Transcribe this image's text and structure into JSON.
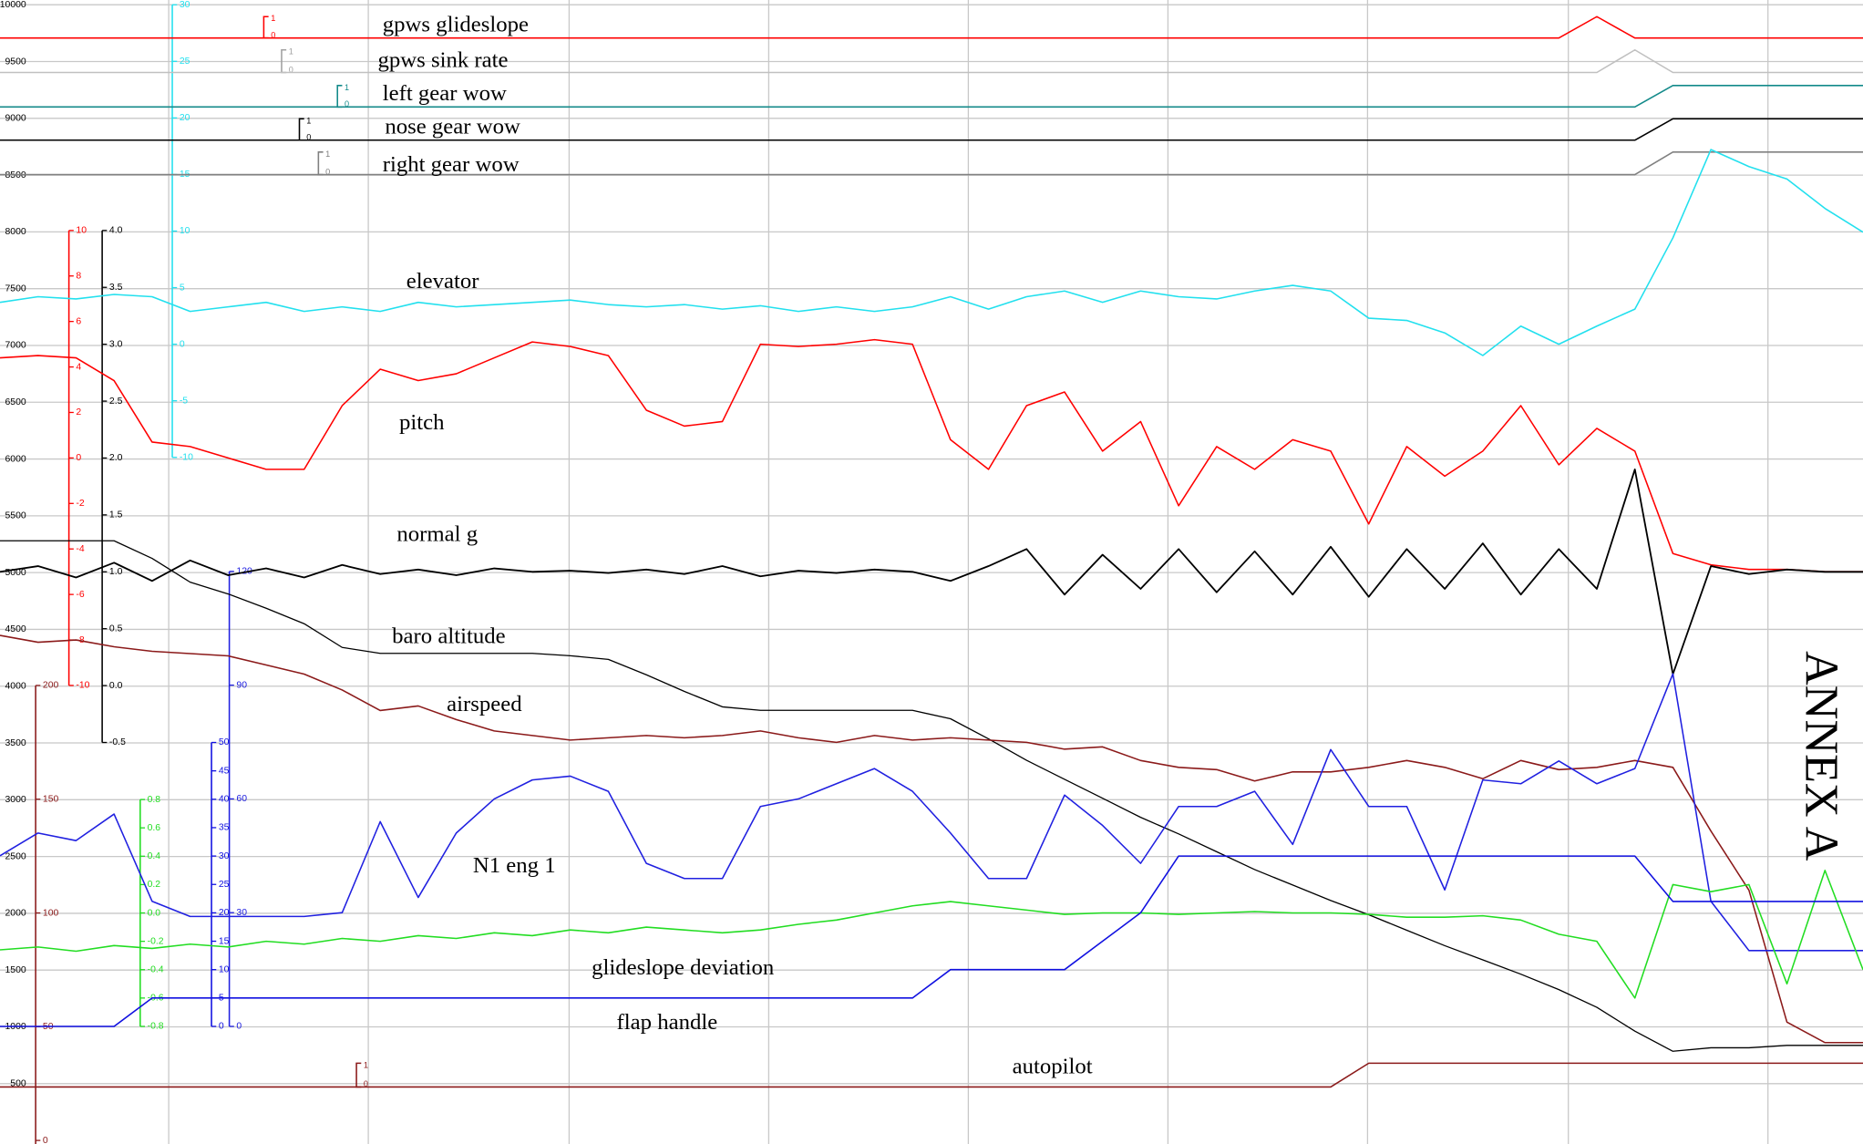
{
  "chart_data": {
    "type": "line",
    "grid": true,
    "annotation": "ANNEX A",
    "series": [
      {
        "name": "gpws glideslope",
        "color": "#ff0000",
        "ylim": [
          0,
          1
        ],
        "yticks": [
          0,
          1
        ],
        "values": [
          0,
          0,
          0,
          0,
          0,
          0,
          0,
          0,
          0,
          0,
          0,
          0,
          0,
          0,
          0,
          0,
          0,
          0,
          0,
          0,
          0,
          0,
          0,
          0,
          0,
          0,
          0,
          0,
          0,
          0,
          0,
          0,
          0,
          0,
          0,
          0,
          0,
          0,
          0,
          0,
          0,
          0,
          1,
          0,
          0,
          0,
          0,
          0,
          0,
          0
        ]
      },
      {
        "name": "gpws sink rate",
        "color": "#c0c0c0",
        "ylim": [
          0,
          1
        ],
        "yticks": [
          0,
          1
        ],
        "values": [
          0,
          0,
          0,
          0,
          0,
          0,
          0,
          0,
          0,
          0,
          0,
          0,
          0,
          0,
          0,
          0,
          0,
          0,
          0,
          0,
          0,
          0,
          0,
          0,
          0,
          0,
          0,
          0,
          0,
          0,
          0,
          0,
          0,
          0,
          0,
          0,
          0,
          0,
          0,
          0,
          0,
          0,
          0,
          1,
          0,
          0,
          0,
          0,
          0,
          0
        ]
      },
      {
        "name": "left gear wow",
        "color": "#138a8a",
        "ylim": [
          0,
          1
        ],
        "yticks": [
          0,
          1
        ],
        "values": [
          0,
          0,
          0,
          0,
          0,
          0,
          0,
          0,
          0,
          0,
          0,
          0,
          0,
          0,
          0,
          0,
          0,
          0,
          0,
          0,
          0,
          0,
          0,
          0,
          0,
          0,
          0,
          0,
          0,
          0,
          0,
          0,
          0,
          0,
          0,
          0,
          0,
          0,
          0,
          0,
          0,
          0,
          0,
          0,
          1,
          1,
          1,
          1,
          1,
          1
        ]
      },
      {
        "name": "nose gear wow",
        "color": "#000000",
        "ylim": [
          0,
          1
        ],
        "yticks": [
          0,
          1
        ],
        "values": [
          0,
          0,
          0,
          0,
          0,
          0,
          0,
          0,
          0,
          0,
          0,
          0,
          0,
          0,
          0,
          0,
          0,
          0,
          0,
          0,
          0,
          0,
          0,
          0,
          0,
          0,
          0,
          0,
          0,
          0,
          0,
          0,
          0,
          0,
          0,
          0,
          0,
          0,
          0,
          0,
          0,
          0,
          0,
          0,
          1,
          1,
          1,
          1,
          1,
          1
        ]
      },
      {
        "name": "right gear wow",
        "color": "#808080",
        "ylim": [
          0,
          1
        ],
        "yticks": [
          0,
          1
        ],
        "values": [
          0,
          0,
          0,
          0,
          0,
          0,
          0,
          0,
          0,
          0,
          0,
          0,
          0,
          0,
          0,
          0,
          0,
          0,
          0,
          0,
          0,
          0,
          0,
          0,
          0,
          0,
          0,
          0,
          0,
          0,
          0,
          0,
          0,
          0,
          0,
          0,
          0,
          0,
          0,
          0,
          0,
          0,
          0,
          0,
          1,
          1,
          1,
          1,
          1,
          1
        ]
      },
      {
        "name": "elevator",
        "color": "#22e0ee",
        "ylim": [
          -10,
          30
        ],
        "yticks": [
          -10,
          -5,
          0,
          5,
          10,
          15,
          20,
          25,
          30
        ],
        "values": [
          3.7,
          4.2,
          4.0,
          4.4,
          4.2,
          2.9,
          3.3,
          3.7,
          2.9,
          3.3,
          2.9,
          3.7,
          3.3,
          3.5,
          3.7,
          3.9,
          3.5,
          3.3,
          3.5,
          3.1,
          3.4,
          2.9,
          3.3,
          2.9,
          3.3,
          4.2,
          3.1,
          4.2,
          4.7,
          3.7,
          4.7,
          4.2,
          4.0,
          4.7,
          5.2,
          4.7,
          2.3,
          2.1,
          1.0,
          -1.0,
          1.6,
          0.0,
          1.6,
          3.1,
          9.4,
          17.2,
          15.7,
          14.6,
          12.0,
          9.9
        ]
      },
      {
        "name": "pitch",
        "color": "#ff0000",
        "ylim": [
          -10,
          10
        ],
        "yticks": [
          -10,
          -8,
          -6,
          -4,
          -2,
          0,
          2,
          4,
          6,
          8,
          10
        ],
        "values": [
          4.4,
          4.5,
          4.4,
          3.4,
          0.7,
          0.5,
          0,
          -0.5,
          -0.5,
          2.3,
          3.9,
          3.4,
          3.7,
          4.4,
          5.1,
          4.9,
          4.5,
          2.1,
          1.4,
          1.6,
          5.0,
          4.9,
          5.0,
          5.2,
          5.0,
          0.8,
          -0.5,
          2.3,
          2.9,
          0.3,
          1.6,
          -2.1,
          0.5,
          -0.5,
          0.8,
          0.3,
          -2.9,
          0.5,
          -0.8,
          0.3,
          2.3,
          -0.3,
          1.3,
          0.3,
          -4.2,
          -4.7,
          -4.9,
          -4.9,
          -5.0,
          -5.0
        ]
      },
      {
        "name": "normal g",
        "color": "#000000",
        "ylim": [
          -0.5,
          4
        ],
        "yticks": [
          -0.5,
          {
            "value": 0,
            "label": "0.0"
          },
          0.5,
          {
            "value": 1,
            "label": "1.0"
          },
          1.5,
          {
            "value": 2,
            "label": "2.0"
          },
          2.5,
          {
            "value": 3,
            "label": "3.0"
          },
          3.5,
          {
            "value": 4,
            "label": "4.0"
          }
        ],
        "values": [
          1.0,
          1.05,
          0.95,
          1.08,
          0.92,
          1.1,
          0.97,
          1.03,
          0.95,
          1.06,
          0.98,
          1.02,
          0.97,
          1.03,
          1.0,
          1.01,
          0.99,
          1.02,
          0.98,
          1.05,
          0.96,
          1.01,
          0.99,
          1.02,
          1.0,
          0.92,
          1.05,
          1.2,
          0.8,
          1.15,
          0.85,
          1.2,
          0.82,
          1.18,
          0.8,
          1.22,
          0.78,
          1.2,
          0.85,
          1.25,
          0.8,
          1.2,
          0.85,
          1.9,
          0.1,
          1.05,
          0.98,
          1.02,
          1.0,
          1.0
        ]
      },
      {
        "name": "baro altitude",
        "color": "#000000",
        "ylim": [
          0,
          10000
        ],
        "yticks": [
          500,
          1000,
          1500,
          2000,
          2500,
          3000,
          3500,
          4000,
          4500,
          5000,
          5500,
          6000,
          6500,
          7000,
          7500,
          8000,
          8500,
          9000,
          9500,
          10000
        ],
        "values": [
          5280,
          5280,
          5280,
          5280,
          5125,
          4916,
          4812,
          4686,
          4550,
          4341,
          4289,
          4289,
          4289,
          4289,
          4289,
          4268,
          4236,
          4100,
          3954,
          3818,
          3787,
          3787,
          3787,
          3787,
          3787,
          3713,
          3536,
          3347,
          3180,
          3013,
          2845,
          2699,
          2542,
          2385,
          2249,
          2113,
          1987,
          1851,
          1715,
          1590,
          1464,
          1328,
          1172,
          962,
          785,
          816,
          816,
          837,
          837,
          837
        ]
      },
      {
        "name": "airspeed",
        "color": "#8b1a1a",
        "ylim": [
          0,
          200
        ],
        "yticks": [
          0,
          50,
          100,
          150,
          200
        ],
        "values": [
          222,
          219,
          220,
          217,
          215,
          214,
          213,
          209,
          205,
          198,
          189,
          191,
          185,
          180,
          178,
          176,
          177,
          178,
          177,
          178,
          180,
          177,
          175,
          178,
          176,
          177,
          176,
          175,
          172,
          173,
          167,
          164,
          163,
          158,
          162,
          162,
          164,
          167,
          164,
          159,
          167,
          163,
          164,
          167,
          164,
          136,
          110,
          52,
          43,
          43
        ]
      },
      {
        "name": "N1 eng 1",
        "color": "#2020e0",
        "ylim": [
          0,
          120
        ],
        "yticks": [
          0,
          30,
          60,
          90,
          120
        ],
        "values": [
          45,
          51,
          49,
          56,
          33,
          29,
          29,
          29,
          29,
          30,
          54,
          34,
          51,
          60,
          65,
          66,
          62,
          43,
          39,
          39,
          58,
          60,
          64,
          68,
          62,
          51,
          39,
          39,
          61,
          53,
          43,
          58,
          58,
          62,
          48,
          73,
          58,
          58,
          36,
          65,
          64,
          70,
          64,
          68,
          93,
          33,
          20,
          20,
          20,
          20
        ]
      },
      {
        "name": "glideslope deviation",
        "color": "#22dd22",
        "ylim": [
          -0.8,
          0.8
        ],
        "yticks": [
          -0.8,
          -0.6,
          -0.4,
          -0.2,
          {
            "value": 0,
            "label": "0.0"
          },
          0.2,
          0.4,
          0.6,
          0.8
        ],
        "values": [
          -0.26,
          -0.24,
          -0.27,
          -0.23,
          -0.25,
          -0.22,
          -0.24,
          -0.2,
          -0.22,
          -0.18,
          -0.2,
          -0.16,
          -0.18,
          -0.14,
          -0.16,
          -0.12,
          -0.14,
          -0.1,
          -0.12,
          -0.14,
          -0.12,
          -0.08,
          -0.05,
          0,
          0.05,
          0.08,
          0.05,
          0.02,
          -0.01,
          0,
          0,
          -0.01,
          0,
          0.01,
          0,
          0,
          -0.01,
          -0.03,
          -0.03,
          -0.02,
          -0.05,
          -0.15,
          -0.2,
          -0.6,
          0.2,
          0.15,
          0.2,
          -0.5,
          0.3,
          -0.4
        ]
      },
      {
        "name": "flap handle",
        "color": "#1010e0",
        "ylim": [
          0,
          50
        ],
        "yticks": [
          0,
          5,
          10,
          15,
          20,
          25,
          30,
          35,
          40,
          45,
          50
        ],
        "values": [
          0,
          0,
          0,
          0,
          5,
          5,
          5,
          5,
          5,
          5,
          5,
          5,
          5,
          5,
          5,
          5,
          5,
          5,
          5,
          5,
          5,
          5,
          5,
          5,
          5,
          10,
          10,
          10,
          10,
          15,
          20,
          30,
          30,
          30,
          30,
          30,
          30,
          30,
          30,
          30,
          30,
          30,
          30,
          30,
          22,
          22,
          22,
          22,
          22,
          22
        ]
      },
      {
        "name": "autopilot",
        "color": "#8b1a1a",
        "ylim": [
          0,
          1
        ],
        "yticks": [
          0,
          1
        ],
        "values": [
          0,
          0,
          0,
          0,
          0,
          0,
          0,
          0,
          0,
          0,
          0,
          0,
          0,
          0,
          0,
          0,
          0,
          0,
          0,
          0,
          0,
          0,
          0,
          0,
          0,
          0,
          0,
          0,
          0,
          0,
          0,
          0,
          0,
          0,
          0,
          0,
          1,
          1,
          1,
          1,
          1,
          1,
          1,
          1,
          1,
          1,
          1,
          1,
          1,
          1
        ]
      }
    ]
  }
}
